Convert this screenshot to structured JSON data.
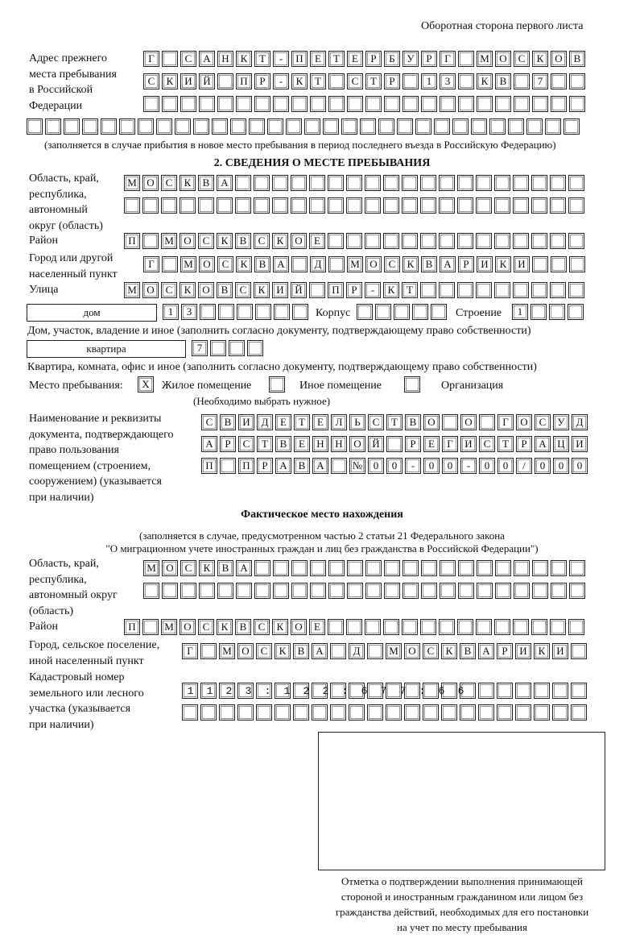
{
  "header": "Оборотная сторона первого листа",
  "prev_address": {
    "label": "Адрес прежнего\nместа пребывания\nв Российской\nФедерации",
    "rows": [
      "Г САНКТ-ПЕТЕРБУРГ МОСКОВ",
      "СКИЙ ПР-КТ СТР 13 КВ 7  ",
      "                        ",
      "                              "
    ],
    "note": "(заполняется в случае прибытия в новое место пребывания в период последнего въезда в Российскую Федерацию)"
  },
  "section2": {
    "title": "2. СВЕДЕНИЯ О МЕСТЕ ПРЕБЫВАНИЯ",
    "region_label": "Область, край,\nреспублика,\nавтономный\nокруг (область)",
    "region_rows": [
      "МОСКВА                   ",
      "                         "
    ],
    "district_label": "Район",
    "district_row": "П МОСКВСКОЕ              ",
    "city_label": "Город или другой\nнаселенный пункт",
    "city_row": "Г МОСКВА Д МОСКВАРИКИ   ",
    "street_label": "Улица",
    "street_row": "МОСКОВСКИЙ ПР-КТ         ",
    "house_type": "дом",
    "house_row": "13      ",
    "korpus_label": "Корпус",
    "korpus_row": "     ",
    "stroenie_label": "Строение",
    "stroenie_row": "1   ",
    "house_note": "Дом, участок, владение и иное (заполнить согласно документу, подтверждающему право собственности)",
    "flat_type": "квартира",
    "flat_row": "7   ",
    "flat_note": "Квартира, комната, офис и иное (заполнить согласно документу, подтверждающему право собственности)",
    "place_label": "Место пребывания:",
    "place_options": [
      {
        "mark": "X",
        "label": "Жилое помещение"
      },
      {
        "mark": "",
        "label": "Иное помещение"
      },
      {
        "mark": "",
        "label": "Организация"
      }
    ],
    "place_note": "(Необходимо выбрать нужное)",
    "doc_label": "Наименование и реквизиты\nдокумента, подтверждающего\nправо пользования\nпомещением (строением,\nсооружением) (указывается\nпри наличии)",
    "doc_rows": [
      "СВИДЕТЕЛЬСТВО О ГОСУД",
      "АРСТВЕННОЙ РЕГИСТРАЦИ",
      "П ПРАВА №00-00-00/000"
    ]
  },
  "actual": {
    "title": "Фактическое место нахождения",
    "note1": "(заполняется в случае, предусмотренном частью 2 статьи 21 Федерального закона",
    "note2": "\"О миграционном учете иностранных граждан и лиц без гражданства в Российской Федерации\")",
    "region_label": "Область, край,\nреспублика,\nавтономный округ\n(область)",
    "region_rows": [
      "МОСКВА                  ",
      "                        "
    ],
    "district_label": "Район",
    "district_row": "П МОСКВСКОЕ              ",
    "city_label": "Город, сельское поселение,\nиной населенный пункт",
    "city_row": "Г МОСКВА Д МОСКВАРИКИ ",
    "cadastral_label": "Кадастровый номер\nземельного или лесного\nучастка (указывается\nпри наличии)",
    "cadastral_rows": [
      "1123:122:677:66       ",
      "                      "
    ]
  },
  "stamp_caption": "Отметка о подтверждении выполнения принимающей\nстороной и иностранным гражданином или лицом без\nгражданства действий, необходимых для его постановки\nна учет по месту пребывания"
}
